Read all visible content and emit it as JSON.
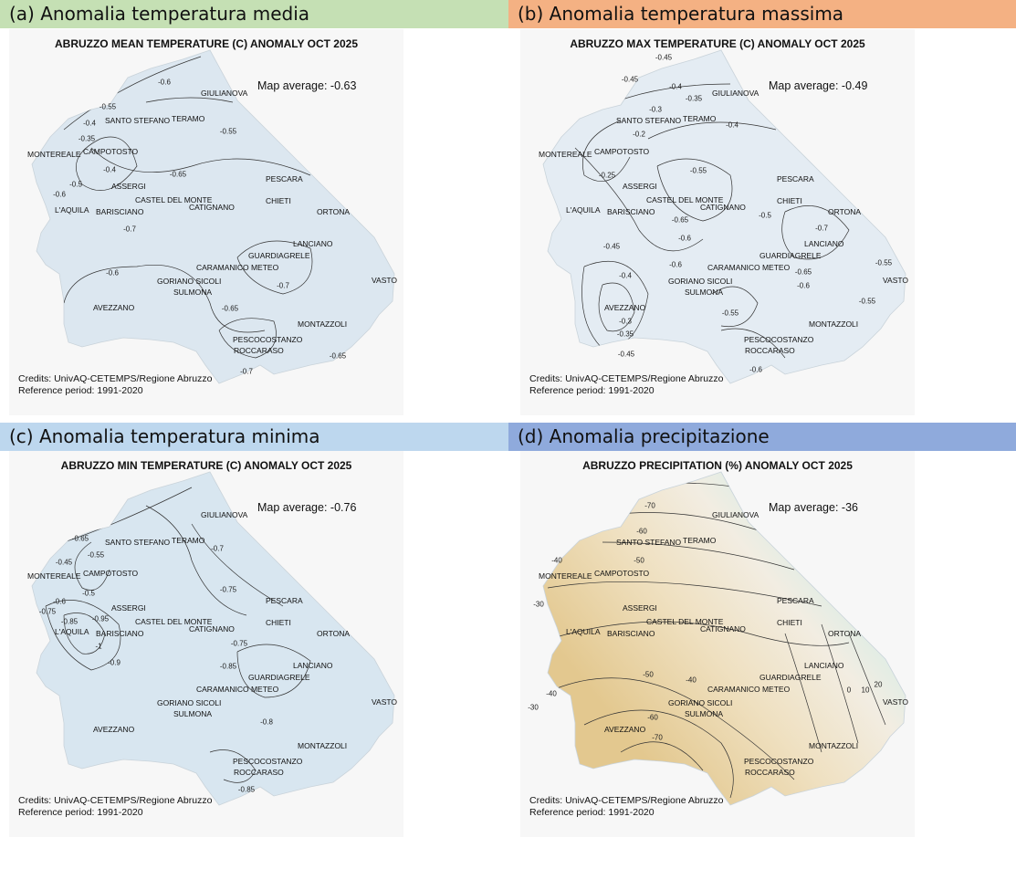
{
  "panels": [
    {
      "header": "(a) Anomalia temperatura media",
      "header_color": "#c5e0b4",
      "title": "ABRUZZO MEAN TEMPERATURE (C) ANOMALY OCT 2025",
      "map_average": "Map average: -0.63",
      "credits": "Credits: UnivAQ-CETEMPS/Regione Abruzzo",
      "reference": "Reference period: 1991-2020",
      "fill": "#dce7f0",
      "contour_labels": [
        "-0.6",
        "-0.55",
        "-0.4",
        "-0.55",
        "-0.35",
        "-0.4",
        "-0.5",
        "-0.6",
        "-0.65",
        "-0.7",
        "-0.6",
        "-0.7",
        "-0.65",
        "-0.7",
        "-0.65"
      ]
    },
    {
      "header": "(b) Anomalia temperatura massima",
      "header_color": "#f4b183",
      "title": "ABRUZZO MAX TEMPERATURE (C) ANOMALY OCT 2025",
      "map_average": "Map average: -0.49",
      "credits": "Credits: UnivAQ-CETEMPS/Regione Abruzzo",
      "reference": "Reference period: 1991-2020",
      "fill": "#e4ecf3",
      "contour_labels": [
        "-0.45",
        "-0.45",
        "-0.4",
        "-0.35",
        "-0.3",
        "-0.2",
        "-0.4",
        "-0.55",
        "-0.25",
        "-0.65",
        "-0.6",
        "-0.5",
        "-0.7",
        "-0.65",
        "-0.6",
        "-0.55",
        "-0.55",
        "-0.45",
        "-0.4",
        "-0.3",
        "-0.35",
        "-0.45",
        "-0.55",
        "-0.6",
        "-0.6"
      ]
    },
    {
      "header": "(c) Anomalia temperatura minima",
      "header_color": "#bdd7ee",
      "title": "ABRUZZO MIN TEMPERATURE (C) ANOMALY OCT 2025",
      "map_average": "Map average: -0.76",
      "credits": "Credits: UnivAQ-CETEMPS/Regione Abruzzo",
      "reference": "Reference period: 1991-2020",
      "fill": "#d8e6f0",
      "contour_labels": [
        "-0.65",
        "-0.55",
        "-0.45",
        "-0.5",
        "-0.6",
        "-0.75",
        "-0.85",
        "-0.95",
        "-1",
        "-0.9",
        "-0.7",
        "-0.75",
        "-0.75",
        "-0.85",
        "-0.8",
        "-0.85"
      ]
    },
    {
      "header": "(d) Anomalia precipitazione",
      "header_color": "#8faadc",
      "title": "ABRUZZO PRECIPITATION (%) ANOMALY OCT 2025",
      "map_average": "Map average: -36",
      "credits": "Credits: UnivAQ-CETEMPS/Regione Abruzzo",
      "reference": "Reference period: 1991-2020",
      "fill": "#eddcb8",
      "contour_labels": [
        "-70",
        "-60",
        "-50",
        "-40",
        "-30",
        "-40",
        "-50",
        "-60",
        "-70",
        "-30",
        "-40",
        "0",
        "10",
        "20"
      ]
    }
  ],
  "cities": [
    "GIULIANOVA",
    "SANTO STEFANO",
    "TERAMO",
    "CAMPOTOSTO",
    "MONTEREALE",
    "ASSERGI",
    "CASTEL DEL MONTE",
    "L'AQUILA",
    "BARISCIANO",
    "CATIGNANO",
    "PESCARA",
    "CHIETI",
    "ORTONA",
    "LANCIANO",
    "GUARDIAGRELE",
    "CARAMANICO METEO",
    "VASTO",
    "GORIANO SICOLI",
    "SULMONA",
    "AVEZZANO",
    "MONTAZZOLI",
    "PESCOCOSTANZO",
    "ROCCARASO"
  ]
}
